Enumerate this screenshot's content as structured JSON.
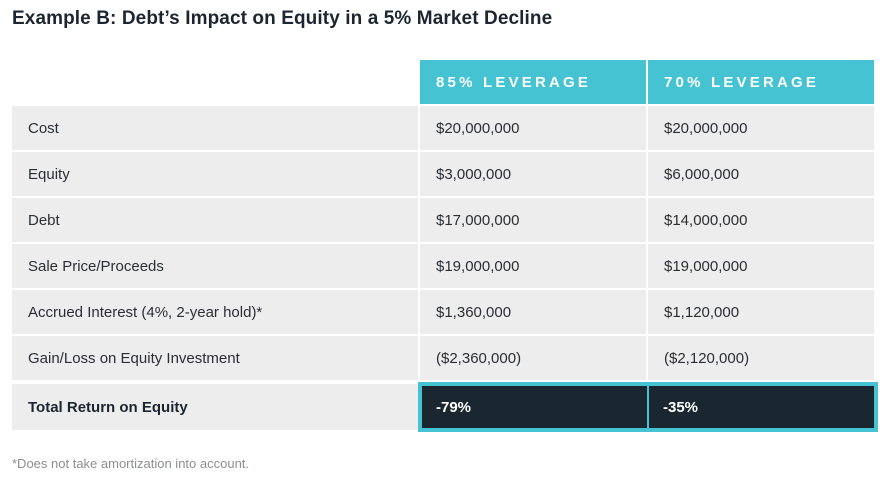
{
  "title": "Example B: Debt’s Impact on Equity in a 5% Market Decline",
  "headers": [
    "85% LEVERAGE",
    "70% LEVERAGE"
  ],
  "rows": [
    {
      "label": "Cost",
      "v1": "$20,000,000",
      "v2": "$20,000,000"
    },
    {
      "label": "Equity",
      "v1": "$3,000,000",
      "v2": "$6,000,000"
    },
    {
      "label": "Debt",
      "v1": "$17,000,000",
      "v2": "$14,000,000"
    },
    {
      "label": "Sale Price/Proceeds",
      "v1": "$19,000,000",
      "v2": "$19,000,000"
    },
    {
      "label": "Accrued Interest (4%, 2-year hold)*",
      "v1": "$1,360,000",
      "v2": "$1,120,000"
    },
    {
      "label": "Gain/Loss on Equity Investment",
      "v1": "($2,360,000)",
      "v2": "($2,120,000)"
    }
  ],
  "total": {
    "label": "Total Return on Equity",
    "v1": "-79%",
    "v2": "-35%"
  },
  "footnote": "*Does not take amortization into account.",
  "colors": {
    "header": "#45c3d3",
    "total_bg": "#1b2730",
    "row_bg": "#ededee"
  }
}
